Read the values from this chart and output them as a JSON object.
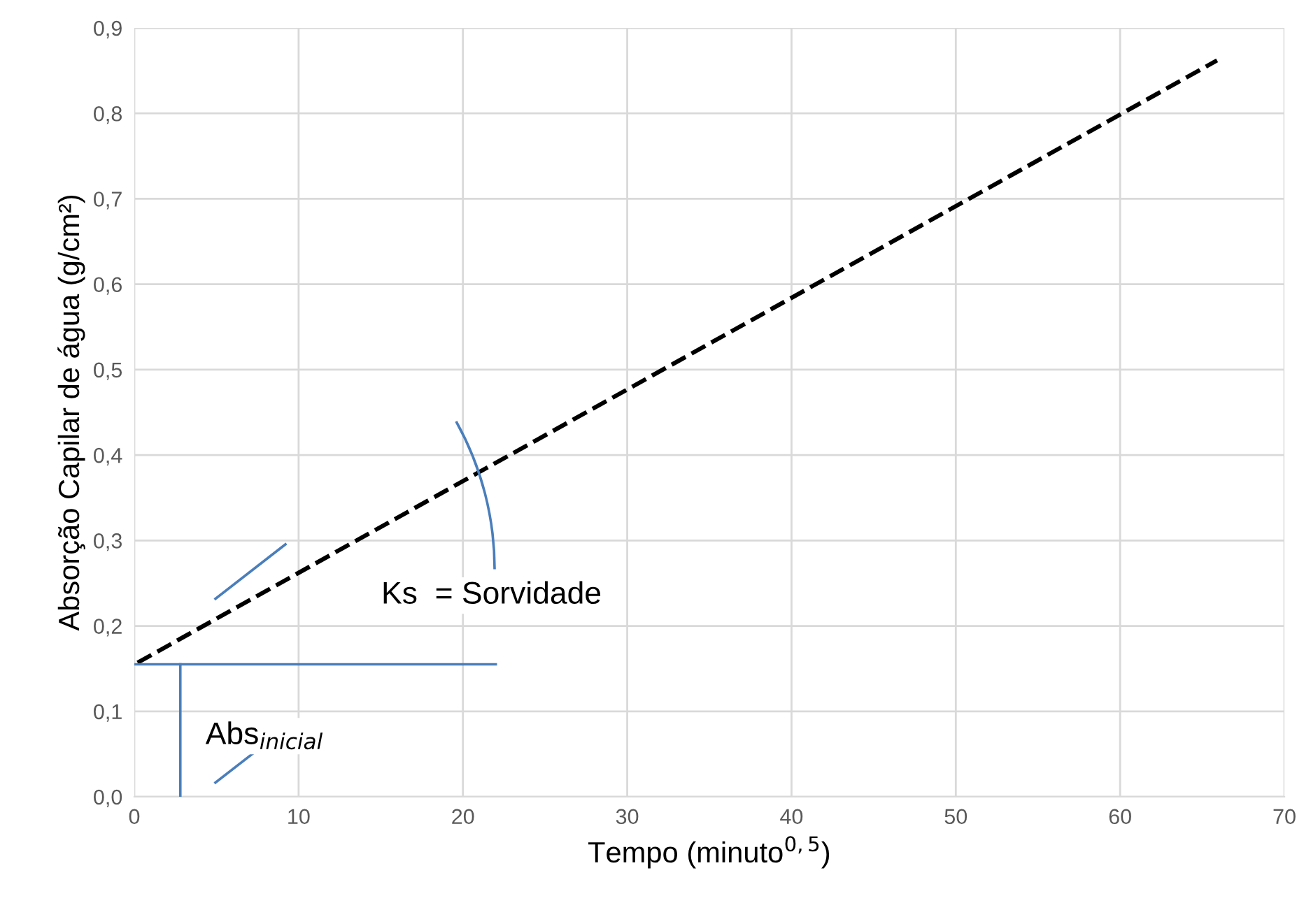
{
  "chart_data": {
    "type": "line",
    "xlabel": "Tempo (minuto$^{0,5}$)",
    "ylabel": "Absorção Capilar de água (g/cm²)",
    "series": [
      {
        "x": [
          0.2,
          65.9
        ],
        "values": [
          0.157,
          0.862
        ],
        "color": "#000000",
        "line_style": "dashed"
      },
      {
        "x": [
          0,
          22
        ],
        "values": [
          0.155,
          0.155
        ],
        "color": "#4a7ebb",
        "line_style": "solid"
      },
      {
        "x": [
          2.8,
          2.8
        ],
        "values": [
          0,
          0.155
        ],
        "color": "#4a7ebb",
        "line_style": "solid"
      }
    ],
    "annotations": [
      "Ks  = Sorvidade",
      "Abs$_{inicial}$"
    ],
    "xlim": [
      0,
      70
    ],
    "xticks": [
      0,
      10,
      20,
      30,
      40,
      50,
      60,
      70
    ],
    "ylim": [
      0,
      0.9
    ],
    "yticks": [
      {
        "value": 0,
        "label": "0,0"
      },
      {
        "value": 0.1,
        "label": "0,1"
      },
      {
        "value": 0.2,
        "label": "0,2"
      },
      {
        "value": 0.3,
        "label": "0,3"
      },
      {
        "value": 0.4,
        "label": "0,4"
      },
      {
        "value": 0.5,
        "label": "0,5"
      },
      {
        "value": 0.6,
        "label": "0,6"
      },
      {
        "value": 0.7,
        "label": "0,7"
      },
      {
        "value": 0.8,
        "label": "0,8"
      },
      {
        "value": 0.9,
        "label": "0,9"
      }
    ],
    "grid": true,
    "marker": "none"
  }
}
